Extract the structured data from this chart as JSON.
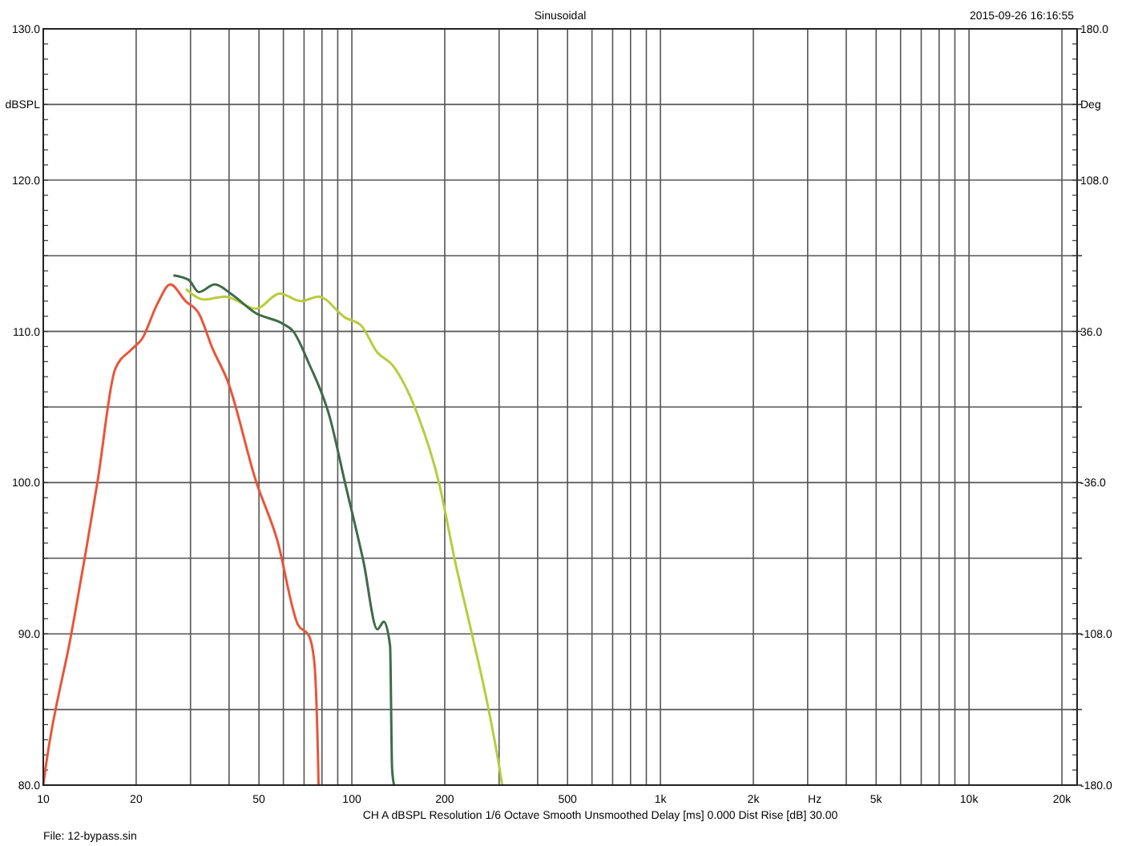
{
  "chart_data": {
    "type": "line",
    "title": "Sinusoidal",
    "xlabel": "Hz",
    "ylabel": "dBSPL",
    "y2label": "Deg",
    "annotations": [
      "2015-09-26 16:16:55",
      "CH A  dBSPL  Resolution 1/6 Octave  Smooth Unsmoothed  Delay [ms] 0.000  Dist Rise [dB] 30.00",
      "File: 12-bypass.sin"
    ],
    "log": "x",
    "grid": true,
    "marker": "none",
    "line_style": "solid",
    "xlim": [
      10,
      22400
    ],
    "ylim": [
      80,
      130
    ],
    "y2lim": [
      -180,
      180
    ],
    "xticks": [
      10,
      20,
      {
        "value": 30,
        "label": null
      },
      {
        "value": 40,
        "label": null
      },
      50,
      {
        "value": 60,
        "label": null
      },
      {
        "value": 70,
        "label": null
      },
      {
        "value": 80,
        "label": null
      },
      {
        "value": 90,
        "label": null
      },
      100,
      200,
      {
        "value": 300,
        "label": null
      },
      {
        "value": 400,
        "label": null
      },
      500,
      {
        "value": 600,
        "label": null
      },
      {
        "value": 700,
        "label": null
      },
      {
        "value": 800,
        "label": null
      },
      {
        "value": 900,
        "label": null
      },
      {
        "value": 1000,
        "label": "1k"
      },
      {
        "value": 2000,
        "label": "2k"
      },
      {
        "value": 3000,
        "label": null
      },
      {
        "value": 4000,
        "label": null
      },
      {
        "value": 5000,
        "label": "5k"
      },
      {
        "value": 6000,
        "label": null
      },
      {
        "value": 7000,
        "label": null
      },
      {
        "value": 8000,
        "label": null
      },
      {
        "value": 9000,
        "label": null
      },
      {
        "value": 10000,
        "label": "10k"
      },
      {
        "value": 20000,
        "label": "20k"
      }
    ],
    "yticks": [
      {
        "value": 80,
        "label": "80.0"
      },
      {
        "value": 85,
        "label": null
      },
      {
        "value": 90,
        "label": "90.0"
      },
      {
        "value": 95,
        "label": null
      },
      {
        "value": 100,
        "label": "100.0"
      },
      {
        "value": 105,
        "label": null
      },
      {
        "value": 110,
        "label": "110.0"
      },
      {
        "value": 115,
        "label": null
      },
      {
        "value": 120,
        "label": "120.0"
      },
      {
        "value": 125,
        "label": null
      },
      {
        "value": 130,
        "label": "130.0"
      }
    ],
    "y2ticks": [
      {
        "value": -180,
        "label": "-180.0"
      },
      {
        "value": -144,
        "label": null
      },
      {
        "value": -108,
        "label": "-108.0"
      },
      {
        "value": -72,
        "label": null
      },
      {
        "value": -36,
        "label": "-36.0"
      },
      {
        "value": 0,
        "label": null
      },
      {
        "value": 36,
        "label": "36.0"
      },
      {
        "value": 72,
        "label": null
      },
      {
        "value": 108,
        "label": "108.0"
      },
      {
        "value": 144,
        "label": null
      },
      {
        "value": 180,
        "label": "180.0"
      }
    ],
    "series": [
      {
        "color": "#e8553a",
        "x": [
          10,
          10.2,
          12.3,
          15,
          17.1,
          19.3,
          20.9,
          23.4,
          25.8,
          28.9,
          31.9,
          35.3,
          39.6,
          48.9,
          57.3,
          66.9,
          72.5,
          75.5,
          77.8,
          78
        ],
        "values": [
          80,
          81.3,
          89.9,
          100.1,
          107.5,
          108.8,
          109.5,
          111.8,
          113.1,
          112,
          111.2,
          108.9,
          106.7,
          100.1,
          96.2,
          90.6,
          89.9,
          88.2,
          81.1,
          80
        ]
      },
      {
        "color": "#3f6b4a",
        "x": [
          26.4,
          29.6,
          31.9,
          36,
          40.5,
          48.9,
          59.8,
          64.6,
          72.5,
          84.6,
          95.5,
          109,
          121,
          127,
          133,
          135,
          137
        ],
        "values": [
          113.7,
          113.4,
          112.6,
          113.1,
          112.5,
          111.2,
          110.5,
          110,
          107.9,
          104.4,
          99.8,
          94.8,
          90.3,
          90.8,
          89.2,
          81.1,
          80
        ]
      },
      {
        "color": "#b8cc3c",
        "x": [
          29,
          33.3,
          38.8,
          48.9,
          58.4,
          68.5,
          78,
          95.3,
          107,
          121,
          135,
          164,
          192,
          216,
          243,
          273,
          301,
          307
        ],
        "values": [
          112.8,
          112.1,
          112.3,
          111.5,
          112.5,
          112,
          112.3,
          110.9,
          110.4,
          108.6,
          107.8,
          104.4,
          99.9,
          94.8,
          90.3,
          85.7,
          81.1,
          80
        ]
      }
    ]
  }
}
